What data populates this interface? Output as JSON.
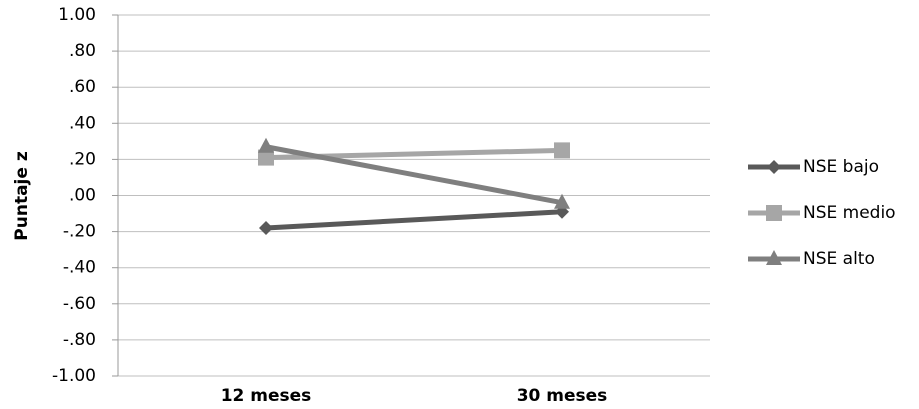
{
  "chart_data": {
    "type": "line",
    "y_label": "Puntaje z",
    "categories": [
      "12 meses",
      "30 meses"
    ],
    "series": [
      {
        "name": "NSE bajo",
        "color": "#595959",
        "marker": "diamond",
        "values": [
          -0.18,
          -0.09
        ]
      },
      {
        "name": "NSE medio",
        "color": "#a6a6a6",
        "marker": "square",
        "values": [
          0.21,
          0.25
        ]
      },
      {
        "name": "NSE alto",
        "color": "#7f7f7f",
        "marker": "triangle",
        "values": [
          0.27,
          -0.04
        ]
      }
    ],
    "ylim": [
      -1,
      1
    ],
    "yticks": [
      {
        "value": 1,
        "label": "1.00"
      },
      {
        "value": 0.8,
        "label": ".80"
      },
      {
        "value": 0.6,
        "label": ".60"
      },
      {
        "value": 0.4,
        "label": ".40"
      },
      {
        "value": 0.2,
        "label": ".20"
      },
      {
        "value": 0,
        "label": ".00"
      },
      {
        "value": -0.2,
        "label": "-.20"
      },
      {
        "value": -0.4,
        "label": "-.40"
      },
      {
        "value": -0.6,
        "label": "-.60"
      },
      {
        "value": -0.8,
        "label": "-.80"
      },
      {
        "value": -1,
        "label": "-1.00"
      }
    ],
    "grid": true,
    "legend": "right"
  }
}
